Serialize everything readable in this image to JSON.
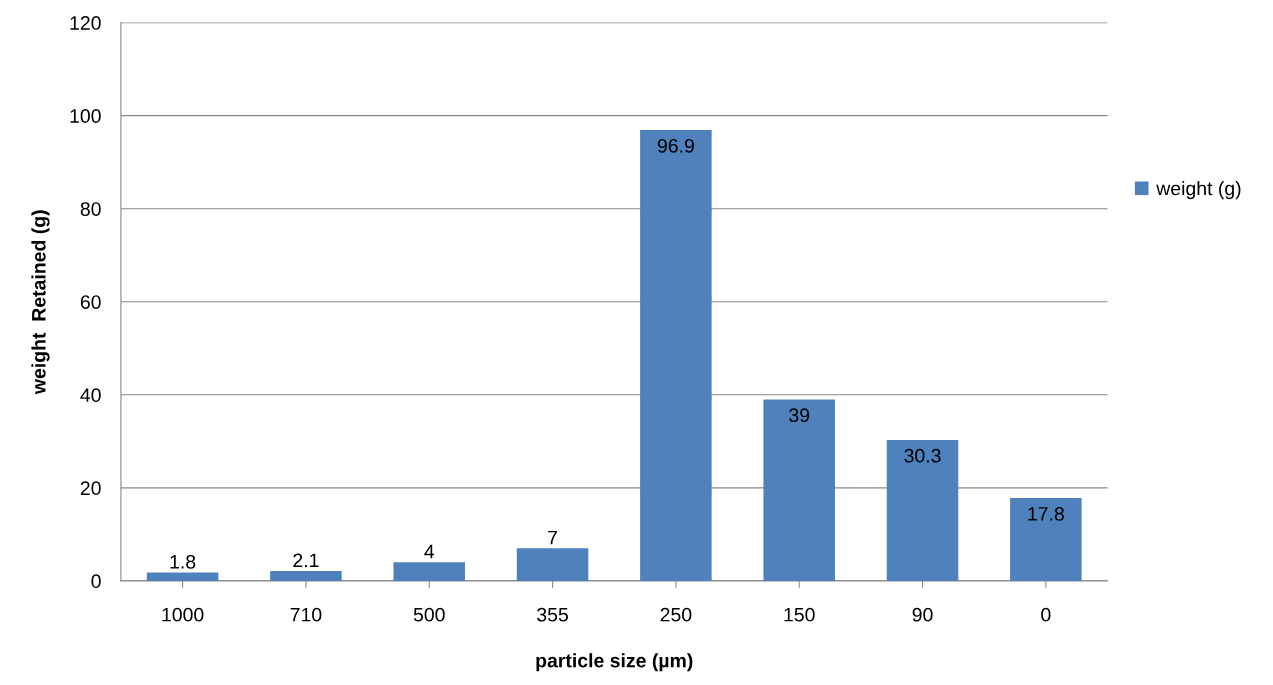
{
  "chart_data": {
    "type": "bar",
    "xlabel": "particle size (µm)",
    "ylabel": "weight  Retained (g)",
    "categories": [
      "1000",
      "710",
      "500",
      "355",
      "250",
      "150",
      "90",
      "0"
    ],
    "series": [
      {
        "name": "weight (g)",
        "color": "#4f81bd",
        "values": [
          1.8,
          2.1,
          4,
          7,
          96.9,
          39,
          30.3,
          17.8
        ]
      }
    ],
    "ylim": [
      0,
      120
    ],
    "yticks": [
      0,
      20,
      40,
      60,
      80,
      100,
      120
    ],
    "grid": "y",
    "legend": "right",
    "data_labels": true
  }
}
